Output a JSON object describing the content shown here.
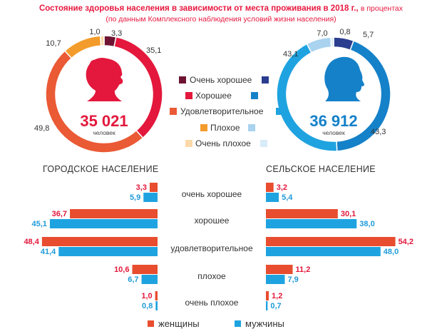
{
  "header": {
    "title": "Состояние здоровья населения в зависимости от места проживания в 2018 г.,",
    "title_unit": "в процентах",
    "subtitle": "(по данным Комплексного наблюдения условий жизни населения)"
  },
  "colors": {
    "women": "#e84d2f",
    "men": "#1fa3e0",
    "women_text": "#e3183c",
    "men_text": "#1f9ad9"
  },
  "chart_data": [
    {
      "type": "pie",
      "variant": "donut",
      "center_value": "35 021",
      "center_label": "человек",
      "icon": "female-head-icon",
      "categories": [
        "Очень хорошее",
        "Хорошее",
        "Удовлетворительное",
        "Плохое",
        "Очень плохое"
      ],
      "values": [
        3.3,
        35.1,
        49.8,
        10.7,
        1.0
      ],
      "value_labels": [
        "3,3",
        "35,1",
        "49,8",
        "10,7",
        "1,0"
      ],
      "colors": [
        "#6e1432",
        "#e3183c",
        "#ea5a35",
        "#f39c2b",
        "#fcd9a8"
      ]
    },
    {
      "type": "pie",
      "variant": "donut",
      "center_value": "36 912",
      "center_label": "человек",
      "icon": "male-head-icon",
      "categories": [
        "Очень хорошее",
        "Хорошее",
        "Удовлетворительное",
        "Плохое",
        "Очень плохое"
      ],
      "values": [
        5.7,
        43.3,
        43.1,
        7.0,
        0.8
      ],
      "value_labels": [
        "5,7",
        "43,3",
        "43,1",
        "7,0",
        "0,8"
      ],
      "colors": [
        "#2b3d8f",
        "#1581c9",
        "#1fa3e0",
        "#a9d3ef",
        "#d7ebf8"
      ]
    },
    {
      "type": "bar",
      "orientation": "horizontal",
      "title": "ГОРОДСКОЕ НАСЕЛЕНИЕ",
      "categories": [
        "очень хорошее",
        "хорошее",
        "удовлетворительное",
        "плохое",
        "очень плохое"
      ],
      "series": [
        {
          "name": "женщины",
          "values": [
            3.3,
            36.7,
            48.4,
            10.6,
            1.0
          ],
          "labels": [
            "3,3",
            "36,7",
            "48,4",
            "10,6",
            "1,0"
          ]
        },
        {
          "name": "мужчины",
          "values": [
            5.9,
            45.1,
            41.4,
            6.7,
            0.8
          ],
          "labels": [
            "5,9",
            "45,1",
            "41,4",
            "6,7",
            "0,8"
          ]
        }
      ]
    },
    {
      "type": "bar",
      "orientation": "horizontal",
      "title": "СЕЛЬСКОЕ НАСЕЛЕНИЕ",
      "categories": [
        "очень хорошее",
        "хорошее",
        "удовлетворительное",
        "плохое",
        "очень плохое"
      ],
      "series": [
        {
          "name": "женщины",
          "values": [
            3.2,
            30.1,
            54.2,
            11.2,
            1.2
          ],
          "labels": [
            "3,2",
            "30,1",
            "54,2",
            "11,2",
            "1,2"
          ]
        },
        {
          "name": "мужчины",
          "values": [
            5.4,
            38.0,
            48.0,
            7.9,
            0.7
          ],
          "labels": [
            "5,4",
            "38,0",
            "48,0",
            "7,9",
            "0,7"
          ]
        }
      ]
    }
  ],
  "legend": {
    "items": [
      "Очень хорошее",
      "Хорошее",
      "Удовлетворительное",
      "Плохое",
      "Очень плохое"
    ],
    "women_colors": [
      "#6e1432",
      "#e3183c",
      "#ea5a35",
      "#f39c2b",
      "#fcd9a8"
    ],
    "men_colors": [
      "#2b3d8f",
      "#1581c9",
      "#1fa3e0",
      "#a9d3ef",
      "#d7ebf8"
    ]
  },
  "bottom_legend": {
    "women": "женщины",
    "men": "мужчины"
  }
}
